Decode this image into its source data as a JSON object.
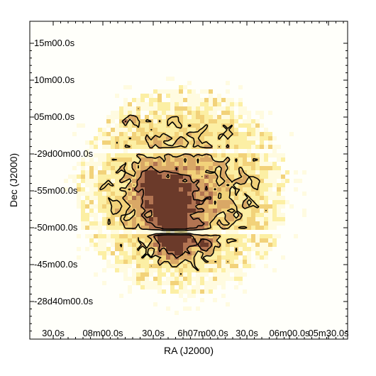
{
  "chart_data": {
    "type": "heatmap",
    "title": "",
    "xlabel": "RA (J2000)",
    "ylabel": "Dec (J2000)",
    "x_tick_labels": [
      "30.0s",
      "08m00.0s",
      "30.0s",
      "6h07m00.0s",
      "30.0s",
      "06m00.0s",
      "05m30.0s"
    ],
    "y_tick_labels": [
      "15m00.0s",
      "10m00.0s",
      "05m00.0s",
      "-29d00m00.0s",
      "-55m00.0s",
      "-50m00.0s",
      "-45m00.0s",
      "-28d40m00.0s"
    ],
    "colormap": [
      "#fffbe0",
      "#fcefa4",
      "#f2d27a",
      "#d9a866",
      "#b27452",
      "#6b3a2a"
    ],
    "contour_color": "#000000",
    "background": "#fffffa",
    "grid": false,
    "field_shape": "circular",
    "bright_regions": [
      {
        "ra_label": "6h07m00.0s",
        "dec_label": "-55m00.0s",
        "level": 0.65
      },
      {
        "ra_label": "6h07m00.0s",
        "dec_label": "-50m00.0s",
        "level": 0.9
      },
      {
        "ra_label": "30.0s",
        "dec_label": "-29d00m00.0s",
        "level": 0.6
      }
    ]
  }
}
